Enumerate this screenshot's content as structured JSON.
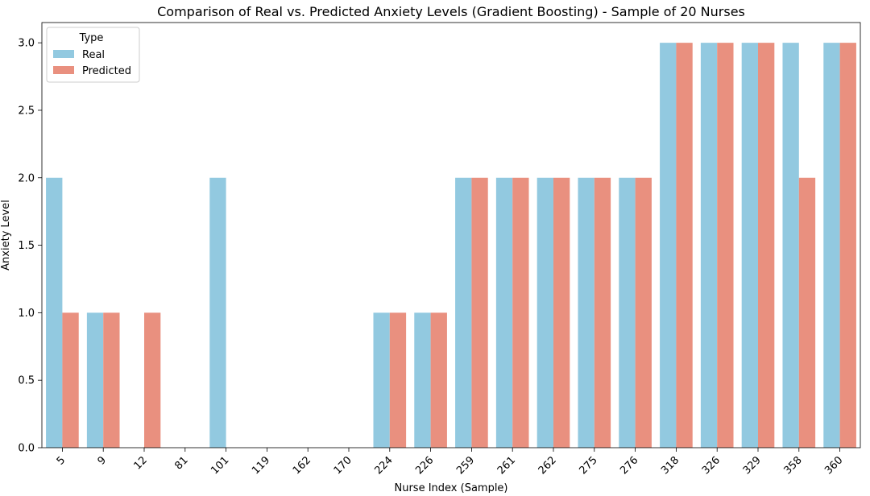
{
  "chart_data": {
    "type": "bar",
    "title": "Comparison of Real vs. Predicted Anxiety Levels (Gradient Boosting) - Sample of 20 Nurses",
    "xlabel": "Nurse Index (Sample)",
    "ylabel": "Anxiety Level",
    "ylim": [
      0,
      3.15
    ],
    "yticks": [
      "0.0",
      "0.5",
      "1.0",
      "1.5",
      "2.0",
      "2.5",
      "3.0"
    ],
    "grid": false,
    "legend": {
      "title": "Type",
      "position": "top-left"
    },
    "categories": [
      "5",
      "9",
      "12",
      "81",
      "101",
      "119",
      "162",
      "170",
      "224",
      "226",
      "259",
      "261",
      "262",
      "275",
      "276",
      "318",
      "326",
      "329",
      "358",
      "360"
    ],
    "series": [
      {
        "name": "Real",
        "color": "#92c9e0",
        "values": [
          2,
          1,
          0,
          0,
          2,
          0,
          0,
          0,
          1,
          1,
          2,
          2,
          2,
          2,
          2,
          3,
          3,
          3,
          3,
          3
        ]
      },
      {
        "name": "Predicted",
        "color": "#e9907f",
        "values": [
          1,
          1,
          1,
          0,
          0,
          0,
          0,
          0,
          1,
          1,
          2,
          2,
          2,
          2,
          2,
          3,
          3,
          3,
          2,
          3
        ]
      }
    ]
  }
}
